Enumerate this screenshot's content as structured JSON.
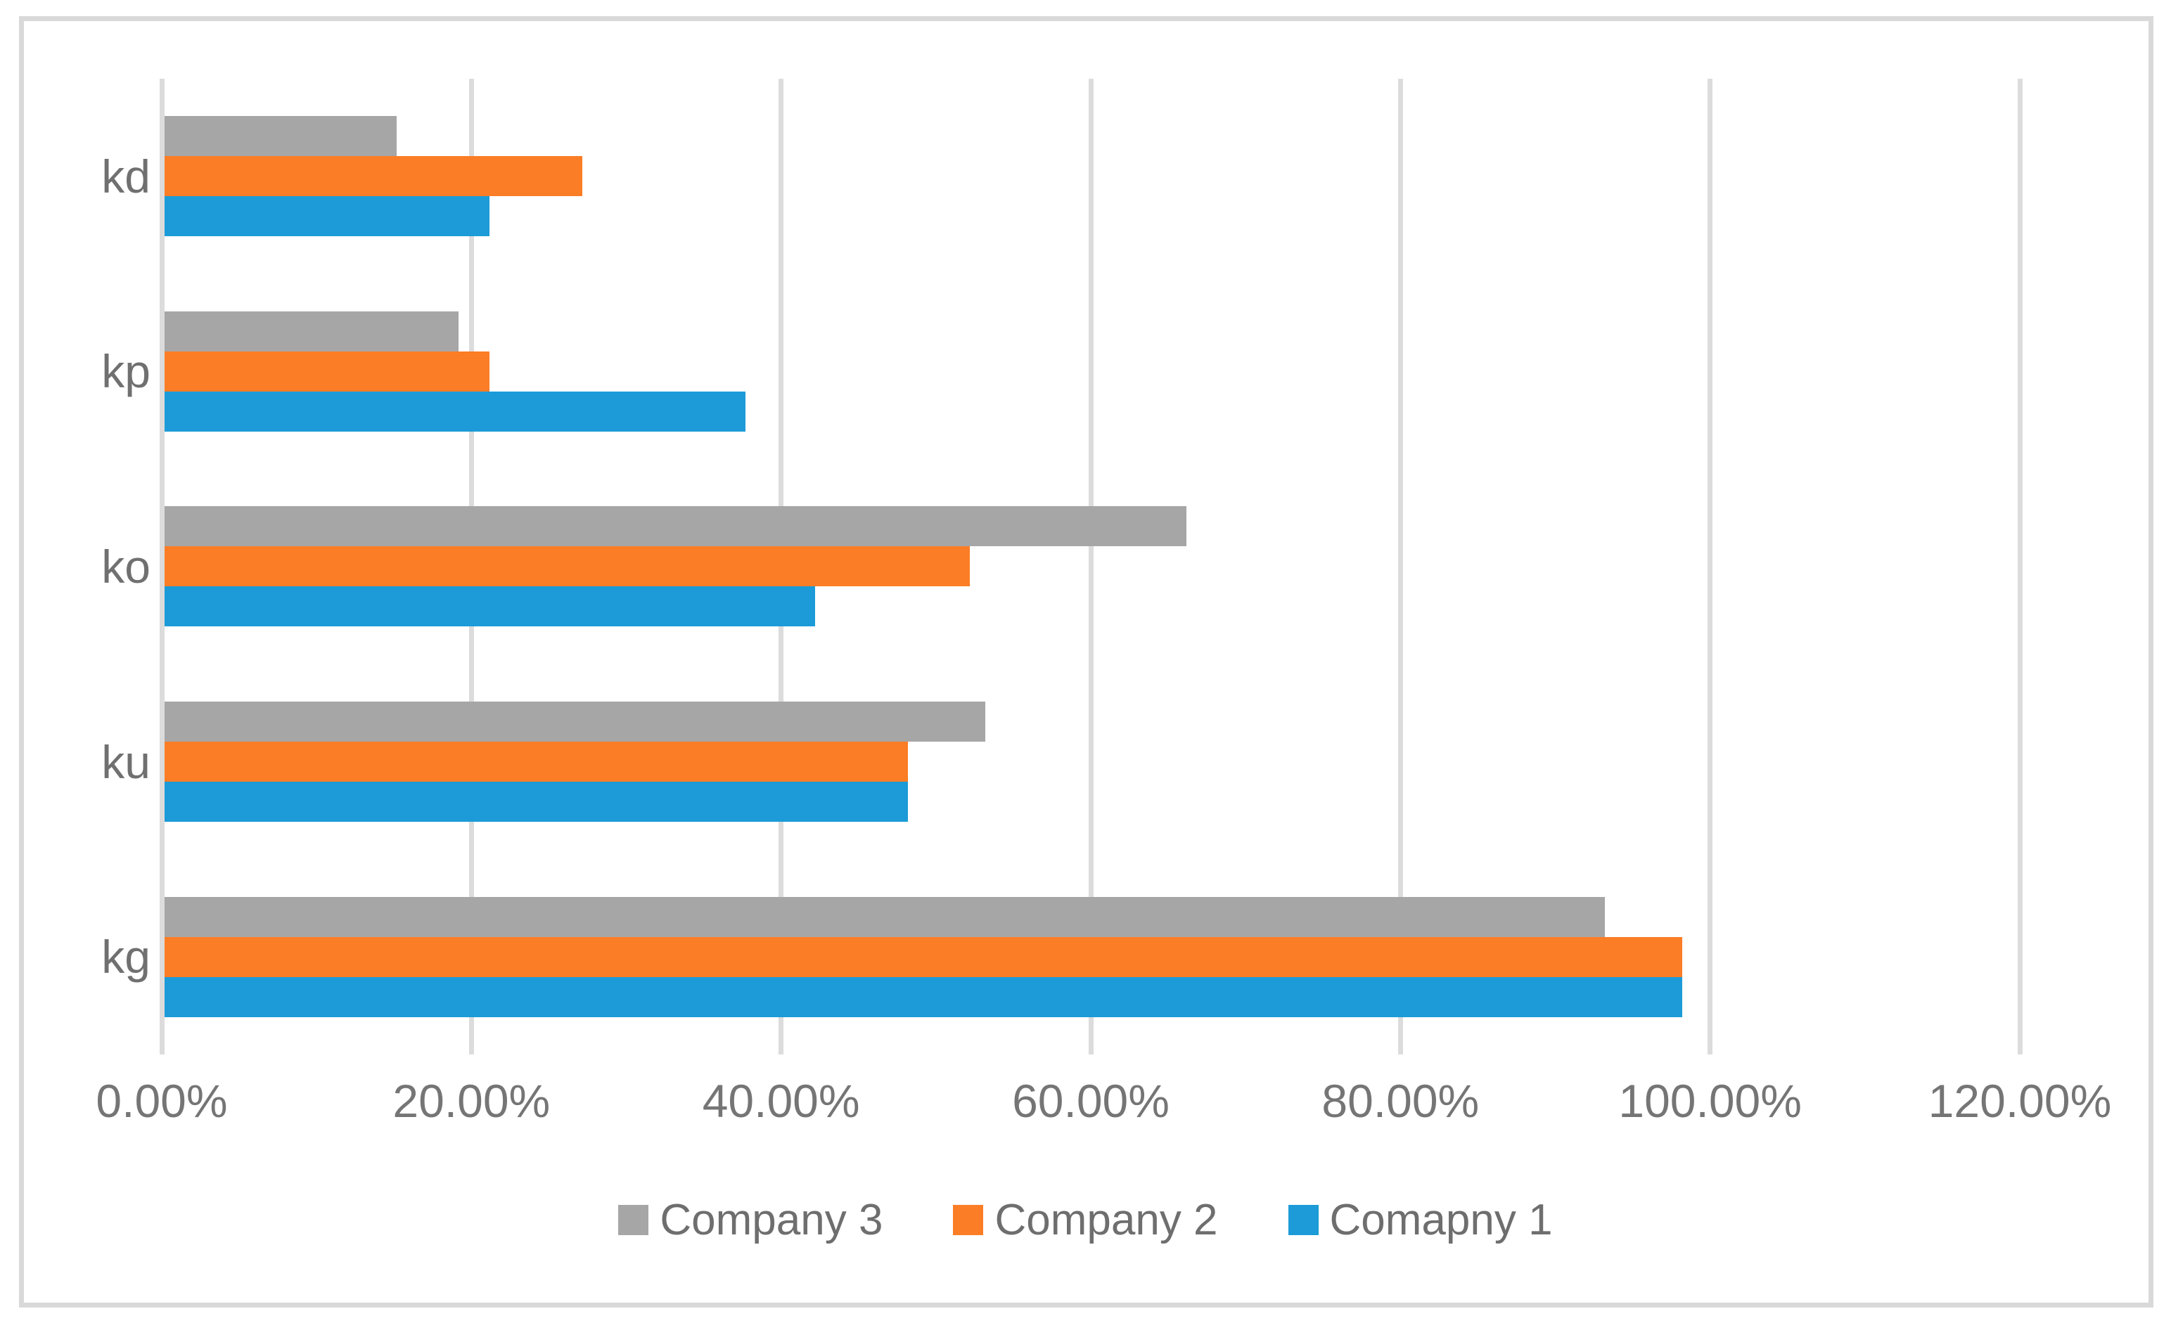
{
  "chart_data": {
    "type": "bar",
    "orientation": "horizontal",
    "title": "",
    "xlabel": "",
    "ylabel": "",
    "grid": true,
    "categories": [
      "kd",
      "kp",
      "ko",
      "ku",
      "kg"
    ],
    "series": [
      {
        "name": "Company 3",
        "color": "#a6a6a6",
        "values": [
          15,
          19,
          66,
          53,
          93
        ]
      },
      {
        "name": "Company 2",
        "color": "#fb7d26",
        "values": [
          27,
          21,
          52,
          48,
          98
        ]
      },
      {
        "name": "Comapny 1",
        "color": "#1c9bd8",
        "values": [
          21,
          37.5,
          42,
          48,
          98
        ]
      }
    ],
    "values_unit": "%",
    "x_axis": {
      "min": 0,
      "max": 120,
      "tick_labels": [
        "0.00%",
        "20.00%",
        "40.00%",
        "60.00%",
        "80.00%",
        "100.00%",
        "120.00%"
      ]
    },
    "legend": {
      "position": "bottom",
      "entries": [
        "Company 3",
        "Company 2",
        "Comapny 1"
      ]
    }
  },
  "colors": {
    "gridline": "#dcdcdc",
    "border": "#d9d9d9",
    "axis_text": "#757575",
    "category_text": "#707070",
    "legend_text": "#6e6e6e",
    "background": "#ffffff"
  }
}
